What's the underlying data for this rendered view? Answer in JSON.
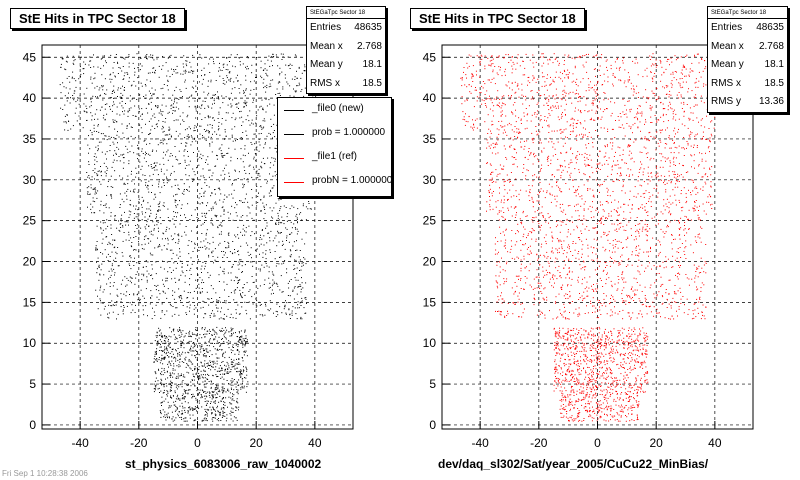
{
  "chart_data": [
    {
      "type": "scatter",
      "title": "StE Hits in TPC Sector 18",
      "xlabel": "st_physics_6083006_raw_1040002",
      "ylabel": "",
      "color": "#000000",
      "xlim": [
        -53,
        53
      ],
      "ylim": [
        -0.5,
        46.5
      ],
      "x_ticks": [
        -40,
        -20,
        0,
        20,
        40
      ],
      "y_ticks": [
        0,
        5,
        10,
        15,
        20,
        25,
        30,
        35,
        40,
        45
      ],
      "grid": true,
      "stats": {
        "header": "StEGaTpc Sector 18",
        "rows": [
          {
            "label": "Entries",
            "value": "48635"
          },
          {
            "label": "Mean x",
            "value": "2.768"
          },
          {
            "label": "Mean y",
            "value": "18.1"
          },
          {
            "label": "RMS x",
            "value": "18.5"
          }
        ]
      },
      "legend": [
        {
          "label": "_file0 (new)",
          "color": "#000000"
        },
        {
          "label": "prob = 1.000000",
          "color": "#000000"
        },
        {
          "label": "_file1 (ref)",
          "color": "#ff0000"
        },
        {
          "label": "probN = 1.000000",
          "color": "#ff0000"
        }
      ],
      "bands": [
        {
          "y": [
            0.5,
            4
          ],
          "x": [
            -13,
            14
          ]
        },
        {
          "y": [
            4,
            12
          ],
          "x": [
            -15,
            17
          ]
        },
        {
          "y": [
            13,
            26
          ],
          "x": [
            -35,
            37
          ]
        },
        {
          "y": [
            26,
            36
          ],
          "x": [
            -38,
            39
          ]
        },
        {
          "y": [
            36,
            45.5
          ],
          "x": [
            -47,
            41
          ]
        }
      ]
    },
    {
      "type": "scatter",
      "title": "StE Hits in TPC Sector 18",
      "xlabel": "dev/daq_sl302/Sat/year_2005/CuCu22_MinBias/",
      "ylabel": "",
      "color": "#ff0000",
      "xlim": [
        -53,
        53
      ],
      "ylim": [
        -0.5,
        46.5
      ],
      "x_ticks": [
        -40,
        -20,
        0,
        20,
        40
      ],
      "y_ticks": [
        0,
        5,
        10,
        15,
        20,
        25,
        30,
        35,
        40,
        45
      ],
      "grid": true,
      "stats": {
        "header": "StEGaTpc Sector 18",
        "rows": [
          {
            "label": "Entries",
            "value": "48635"
          },
          {
            "label": "Mean x",
            "value": "2.768"
          },
          {
            "label": "Mean y",
            "value": "18.1"
          },
          {
            "label": "RMS x",
            "value": "18.5"
          },
          {
            "label": "RMS y",
            "value": "13.36"
          }
        ]
      },
      "bands": [
        {
          "y": [
            0.5,
            4
          ],
          "x": [
            -13,
            14
          ]
        },
        {
          "y": [
            4,
            12
          ],
          "x": [
            -15,
            17
          ]
        },
        {
          "y": [
            13,
            26
          ],
          "x": [
            -35,
            37
          ]
        },
        {
          "y": [
            26,
            36
          ],
          "x": [
            -38,
            39
          ]
        },
        {
          "y": [
            36,
            45.5
          ],
          "x": [
            -47,
            41
          ]
        }
      ]
    }
  ],
  "footer": "Fri Sep 1 10:28:38 2006"
}
